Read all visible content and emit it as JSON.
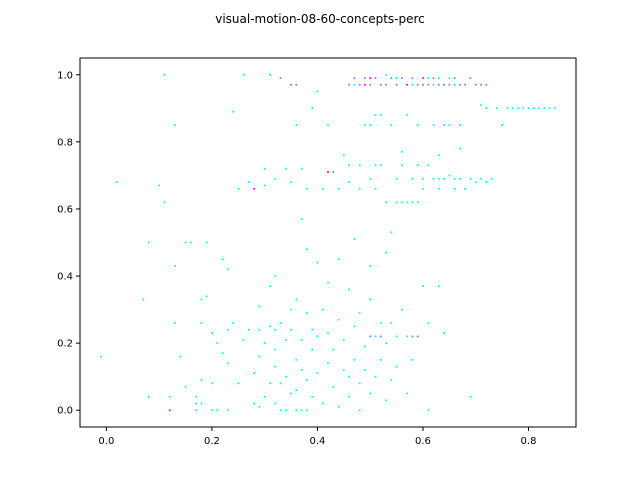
{
  "chart_data": {
    "type": "scatter",
    "title": "visual-motion-08-60-concepts-perc",
    "xlabel": "",
    "ylabel": "",
    "xlim": [
      -0.05,
      0.89
    ],
    "ylim": [
      -0.05,
      1.05
    ],
    "grid": false,
    "x_ticks": [
      "0.0",
      "0.2",
      "0.4",
      "0.6",
      "0.8"
    ],
    "x_tick_values": [
      0.0,
      0.2,
      0.4,
      0.6,
      0.8
    ],
    "y_ticks": [
      "0.0",
      "0.2",
      "0.4",
      "0.6",
      "0.8",
      "1.0"
    ],
    "y_tick_values": [
      0.0,
      0.2,
      0.4,
      0.6,
      0.8,
      1.0
    ],
    "colors": {
      "primary": "#00ffff",
      "secondary": "#7f7fff",
      "accent": "#ff00ff",
      "frame": "#000000"
    },
    "series": [
      {
        "color": "#00ffff",
        "points": [
          [
            -0.01,
            0.16
          ],
          [
            0.02,
            0.68
          ],
          [
            0.07,
            0.33
          ],
          [
            0.08,
            0.04
          ],
          [
            0.08,
            0.5
          ],
          [
            0.1,
            0.67
          ],
          [
            0.11,
            0.62
          ],
          [
            0.11,
            1.0
          ],
          [
            0.12,
            0.04
          ],
          [
            0.13,
            0.85
          ],
          [
            0.13,
            0.43
          ],
          [
            0.13,
            0.26
          ],
          [
            0.14,
            0.16
          ],
          [
            0.15,
            0.5
          ],
          [
            0.15,
            0.07
          ],
          [
            0.16,
            0.5
          ],
          [
            0.17,
            0.0
          ],
          [
            0.17,
            0.02
          ],
          [
            0.17,
            0.04
          ],
          [
            0.18,
            0.02
          ],
          [
            0.18,
            0.09
          ],
          [
            0.18,
            0.26
          ],
          [
            0.18,
            0.33
          ],
          [
            0.19,
            0.34
          ],
          [
            0.19,
            0.5
          ],
          [
            0.2,
            0.0
          ],
          [
            0.2,
            0.08
          ],
          [
            0.2,
            0.23
          ],
          [
            0.21,
            0.2
          ],
          [
            0.21,
            0.0
          ],
          [
            0.22,
            0.17
          ],
          [
            0.22,
            0.45
          ],
          [
            0.23,
            0.14
          ],
          [
            0.23,
            0.42
          ],
          [
            0.23,
            0.24
          ],
          [
            0.23,
            0.0
          ],
          [
            0.24,
            0.26
          ],
          [
            0.24,
            0.89
          ],
          [
            0.25,
            0.66
          ],
          [
            0.25,
            0.08
          ],
          [
            0.26,
            1.0
          ],
          [
            0.26,
            0.21
          ],
          [
            0.27,
            0.68
          ],
          [
            0.27,
            0.24
          ],
          [
            0.28,
            0.02
          ],
          [
            0.28,
            0.11
          ],
          [
            0.29,
            0.01
          ],
          [
            0.29,
            0.16
          ],
          [
            0.29,
            0.24
          ],
          [
            0.29,
            0.31
          ],
          [
            0.3,
            0.72
          ],
          [
            0.3,
            0.67
          ],
          [
            0.3,
            0.04
          ],
          [
            0.3,
            0.2
          ],
          [
            0.31,
            0.08
          ],
          [
            0.31,
            0.37
          ],
          [
            0.31,
            0.25
          ],
          [
            0.31,
            1.0
          ],
          [
            0.32,
            0.13
          ],
          [
            0.32,
            0.18
          ],
          [
            0.32,
            0.02
          ],
          [
            0.32,
            0.24
          ],
          [
            0.32,
            0.4
          ],
          [
            0.32,
            0.69
          ],
          [
            0.33,
            0.08
          ],
          [
            0.33,
            0.26
          ],
          [
            0.33,
            0.0
          ],
          [
            0.34,
            0.1
          ],
          [
            0.34,
            0.21
          ],
          [
            0.34,
            0.72
          ],
          [
            0.34,
            0.0
          ],
          [
            0.35,
            0.24
          ],
          [
            0.35,
            0.05
          ],
          [
            0.35,
            0.3
          ],
          [
            0.35,
            0.68
          ],
          [
            0.35,
            0.97
          ],
          [
            0.36,
            0.06
          ],
          [
            0.36,
            0.15
          ],
          [
            0.36,
            0.0
          ],
          [
            0.36,
            0.33
          ],
          [
            0.36,
            0.85
          ],
          [
            0.37,
            0.57
          ],
          [
            0.37,
            0.12
          ],
          [
            0.37,
            0.21
          ],
          [
            0.37,
            0.0
          ],
          [
            0.37,
            0.72
          ],
          [
            0.38,
            0.48
          ],
          [
            0.38,
            0.09
          ],
          [
            0.38,
            0.29
          ],
          [
            0.38,
            0.66
          ],
          [
            0.38,
            0.0
          ],
          [
            0.39,
            0.24
          ],
          [
            0.39,
            0.04
          ],
          [
            0.39,
            0.9
          ],
          [
            0.39,
            0.18
          ],
          [
            0.4,
            0.11
          ],
          [
            0.4,
            0.22
          ],
          [
            0.4,
            0.44
          ],
          [
            0.4,
            0.95
          ],
          [
            0.41,
            0.02
          ],
          [
            0.41,
            0.3
          ],
          [
            0.41,
            0.66
          ],
          [
            0.42,
            0.14
          ],
          [
            0.42,
            0.23
          ],
          [
            0.42,
            0.38
          ],
          [
            0.42,
            0.85
          ],
          [
            0.43,
            0.07
          ],
          [
            0.43,
            0.18
          ],
          [
            0.43,
            0.71
          ],
          [
            0.44,
            0.27
          ],
          [
            0.44,
            0.01
          ],
          [
            0.44,
            0.45
          ],
          [
            0.45,
            0.12
          ],
          [
            0.45,
            0.76
          ],
          [
            0.45,
            0.21
          ],
          [
            0.46,
            0.1
          ],
          [
            0.46,
            0.36
          ],
          [
            0.46,
            0.04
          ],
          [
            0.46,
            0.68
          ],
          [
            0.47,
            0.51
          ],
          [
            0.47,
            0.15
          ],
          [
            0.47,
            0.25
          ],
          [
            0.47,
            0.97
          ],
          [
            0.48,
            0.08
          ],
          [
            0.48,
            0.29
          ],
          [
            0.48,
            0.73
          ],
          [
            0.48,
            0.0
          ],
          [
            0.49,
            0.19
          ],
          [
            0.49,
            0.85
          ],
          [
            0.49,
            0.12
          ],
          [
            0.5,
            0.33
          ],
          [
            0.5,
            0.05
          ],
          [
            0.5,
            0.69
          ],
          [
            0.5,
            0.43
          ],
          [
            0.51,
            0.22
          ],
          [
            0.51,
            0.1
          ],
          [
            0.51,
            0.88
          ],
          [
            0.51,
            0.66
          ],
          [
            0.52,
            0.26
          ],
          [
            0.52,
            0.15
          ],
          [
            0.52,
            0.73
          ],
          [
            0.52,
            0.97
          ],
          [
            0.53,
            0.03
          ],
          [
            0.53,
            0.47
          ],
          [
            0.53,
            0.62
          ],
          [
            0.53,
            0.2
          ],
          [
            0.54,
            0.53
          ],
          [
            0.54,
            0.09
          ],
          [
            0.54,
            0.85
          ],
          [
            0.54,
            0.26
          ],
          [
            0.55,
            0.69
          ],
          [
            0.55,
            0.13
          ],
          [
            0.55,
            0.22
          ],
          [
            0.55,
            0.97
          ],
          [
            0.56,
            0.62
          ],
          [
            0.56,
            0.3
          ],
          [
            0.56,
            0.77
          ],
          [
            0.57,
            0.05
          ],
          [
            0.57,
            0.88
          ],
          [
            0.57,
            0.62
          ],
          [
            0.57,
            0.22
          ],
          [
            0.58,
            0.15
          ],
          [
            0.58,
            0.69
          ],
          [
            0.58,
            0.97
          ],
          [
            0.59,
            0.62
          ],
          [
            0.59,
            0.22
          ],
          [
            0.59,
            0.85
          ],
          [
            0.6,
            0.37
          ],
          [
            0.6,
            0.66
          ],
          [
            0.6,
            0.97
          ],
          [
            0.61,
            0.26
          ],
          [
            0.61,
            0.0
          ],
          [
            0.61,
            0.73
          ],
          [
            0.62,
            0.69
          ],
          [
            0.62,
            0.85
          ],
          [
            0.62,
            0.97
          ],
          [
            0.63,
            0.66
          ],
          [
            0.63,
            0.37
          ],
          [
            0.63,
            0.76
          ],
          [
            0.64,
            0.69
          ],
          [
            0.64,
            0.23
          ],
          [
            0.64,
            0.97
          ],
          [
            0.65,
            0.85
          ],
          [
            0.65,
            0.7
          ],
          [
            0.66,
            0.66
          ],
          [
            0.66,
            0.97
          ],
          [
            0.67,
            0.69
          ],
          [
            0.67,
            0.85
          ],
          [
            0.67,
            0.78
          ],
          [
            0.68,
            0.66
          ],
          [
            0.68,
            0.97
          ],
          [
            0.69,
            0.69
          ],
          [
            0.69,
            0.04
          ],
          [
            0.7,
            0.68
          ],
          [
            0.7,
            0.97
          ],
          [
            0.71,
            0.91
          ],
          [
            0.71,
            0.69
          ],
          [
            0.72,
            0.9
          ],
          [
            0.72,
            0.68
          ],
          [
            0.73,
            0.69
          ],
          [
            0.74,
            0.9
          ],
          [
            0.75,
            0.85
          ],
          [
            0.76,
            0.9
          ],
          [
            0.77,
            0.9
          ],
          [
            0.78,
            0.9
          ],
          [
            0.79,
            0.9
          ],
          [
            0.8,
            0.9
          ],
          [
            0.81,
            0.9
          ],
          [
            0.82,
            0.9
          ],
          [
            0.83,
            0.9
          ],
          [
            0.84,
            0.9
          ],
          [
            0.85,
            0.9
          ],
          [
            0.53,
            1.0
          ],
          [
            0.55,
            0.99
          ],
          [
            0.6,
            0.99
          ],
          [
            0.63,
            0.99
          ],
          [
            0.65,
            0.99
          ],
          [
            0.52,
            0.88
          ],
          [
            0.5,
            0.85
          ],
          [
            0.46,
            0.73
          ],
          [
            0.44,
            0.66
          ],
          [
            0.56,
            0.73
          ],
          [
            0.59,
            0.73
          ],
          [
            0.6,
            0.69
          ],
          [
            0.63,
            0.69
          ],
          [
            0.66,
            0.69
          ],
          [
            0.68,
            0.66
          ],
          [
            0.61,
            0.99
          ],
          [
            0.64,
            0.85
          ],
          [
            0.55,
            0.62
          ],
          [
            0.58,
            0.62
          ],
          [
            0.51,
            0.73
          ],
          [
            0.48,
            0.66
          ]
        ]
      },
      {
        "color": "#7f7fff",
        "points": [
          [
            0.33,
            0.99
          ],
          [
            0.35,
            0.97
          ],
          [
            0.36,
            0.97
          ],
          [
            0.46,
            0.97
          ],
          [
            0.47,
            0.99
          ],
          [
            0.48,
            0.97
          ],
          [
            0.49,
            0.99
          ],
          [
            0.5,
            0.97
          ],
          [
            0.51,
            0.99
          ],
          [
            0.52,
            0.97
          ],
          [
            0.53,
            0.97
          ],
          [
            0.54,
            0.99
          ],
          [
            0.55,
            0.97
          ],
          [
            0.56,
            0.99
          ],
          [
            0.57,
            0.97
          ],
          [
            0.58,
            0.99
          ],
          [
            0.59,
            0.97
          ],
          [
            0.6,
            0.97
          ],
          [
            0.61,
            0.97
          ],
          [
            0.62,
            0.99
          ],
          [
            0.63,
            0.97
          ],
          [
            0.64,
            0.97
          ],
          [
            0.65,
            0.97
          ],
          [
            0.66,
            0.99
          ],
          [
            0.67,
            0.97
          ],
          [
            0.68,
            0.97
          ],
          [
            0.69,
            0.99
          ],
          [
            0.7,
            0.97
          ],
          [
            0.71,
            0.97
          ],
          [
            0.72,
            0.97
          ],
          [
            0.42,
            0.71
          ],
          [
            0.43,
            0.71
          ],
          [
            0.52,
            0.22
          ],
          [
            0.58,
            0.22
          ],
          [
            0.59,
            0.22
          ],
          [
            0.5,
            0.22
          ]
        ]
      },
      {
        "color": "#ff00ff",
        "points": [
          [
            0.12,
            0.0
          ],
          [
            0.28,
            0.66
          ],
          [
            0.42,
            0.71
          ],
          [
            0.5,
            0.99
          ],
          [
            0.6,
            0.99
          ],
          [
            0.49,
            0.97
          ],
          [
            0.57,
            0.97
          ]
        ]
      }
    ]
  }
}
